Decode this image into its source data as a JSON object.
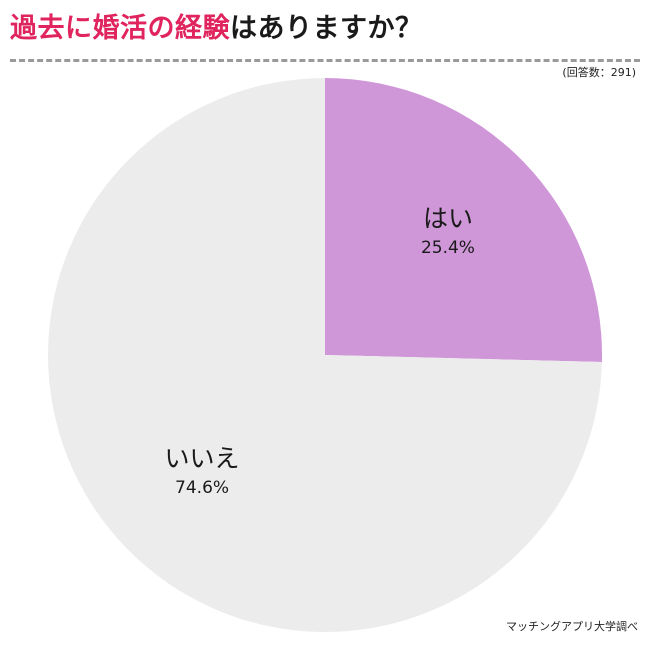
{
  "title": {
    "accent": "過去に婚活の経験",
    "rest": "はありますか？"
  },
  "response_count": "(回答数：291)",
  "source": "マッチングアプリ大学調べ",
  "colors": {
    "yes": "#cf97d8",
    "no": "#ececec",
    "title_accent": "#e0245e"
  },
  "chart_data": {
    "type": "pie",
    "title": "過去に婚活の経験はありますか？",
    "slices": [
      {
        "label": "はい",
        "value": 25.4,
        "display": "25.4%"
      },
      {
        "label": "いいえ",
        "value": 74.6,
        "display": "74.6%"
      }
    ],
    "start": "12 o'clock",
    "direction": "clockwise",
    "legend": "none"
  }
}
